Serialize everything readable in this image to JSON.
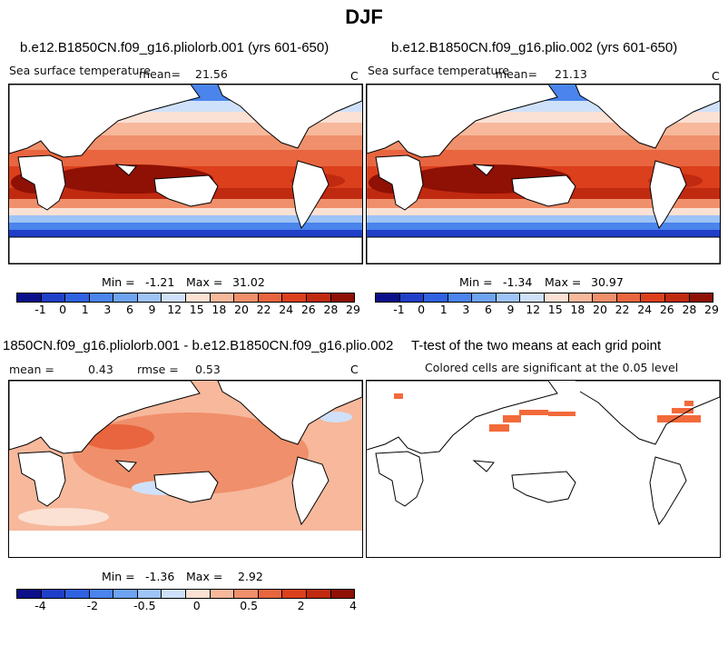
{
  "figure": {
    "title": "DJF",
    "palettes": {
      "sst": [
        "#0b0f8a",
        "#1f3fc8",
        "#2f62e0",
        "#4a84ec",
        "#6ea3f2",
        "#9ec3f6",
        "#cfe1fa",
        "#fbe1d3",
        "#f7b89c",
        "#f08f6b",
        "#e8653f",
        "#dc3f1c",
        "#c02a10",
        "#8f1004"
      ],
      "diff": [
        "#0b0f8a",
        "#1f3fc8",
        "#2f62e0",
        "#4a84ec",
        "#6ea3f2",
        "#9ec3f6",
        "#cfe1fa",
        "#fbe1d3",
        "#f7b89c",
        "#f08f6b",
        "#e8653f",
        "#dc3f1c",
        "#c02a10",
        "#8f1004"
      ],
      "land": "#ffffff",
      "sig": "#f26a3a"
    }
  },
  "panels": [
    {
      "title": "b.e12.B1850CN.f09_g16.pliolorb.001 (yrs 601-650)",
      "variable": "Sea surface temperature",
      "mean_label": "mean=",
      "mean_value": "21.56",
      "unit": "C",
      "min_label": "Min =",
      "min_value": "-1.21",
      "max_label": "Max =",
      "max_value": "31.02",
      "colorbar_ticks": [
        "-1",
        "0",
        "1",
        "3",
        "6",
        "9",
        "12",
        "15",
        "18",
        "20",
        "22",
        "24",
        "26",
        "28",
        "29"
      ]
    },
    {
      "title": "b.e12.B1850CN.f09_g16.plio.002 (yrs 601-650)",
      "variable": "Sea surface temperature",
      "mean_label": "mean=",
      "mean_value": "21.13",
      "unit": "C",
      "min_label": "Min =",
      "min_value": "-1.34",
      "max_label": "Max =",
      "max_value": "30.97",
      "colorbar_ticks": [
        "-1",
        "0",
        "1",
        "3",
        "6",
        "9",
        "12",
        "15",
        "18",
        "20",
        "22",
        "24",
        "26",
        "28",
        "29"
      ]
    },
    {
      "title": "1850CN.f09_g16.pliolorb.001 - b.e12.B1850CN.f09_g16.plio.002",
      "mean_label": "mean =",
      "mean_value": "0.43",
      "rmse_label": "rmse =",
      "rmse_value": "0.53",
      "unit": "C",
      "min_label": "Min =",
      "min_value": "-1.36",
      "max_label": "Max =",
      "max_value": "2.92",
      "colorbar_ticks": [
        "-4",
        "-2",
        "-0.5",
        "0",
        "0.5",
        "2",
        "4"
      ]
    },
    {
      "title": "T-test of the two means at each grid point",
      "subtitle": "Colored cells are significant at the 0.05 level"
    }
  ]
}
